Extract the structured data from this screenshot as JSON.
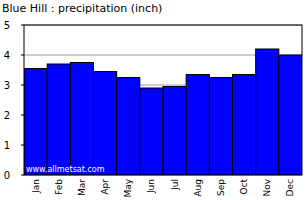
{
  "chart_data": {
    "type": "bar",
    "title": "Blue Hill : precipitation (inch)",
    "categories": [
      "Jan",
      "Feb",
      "Mar",
      "Apr",
      "May",
      "Jun",
      "Jul",
      "Aug",
      "Sep",
      "Oct",
      "Nov",
      "Dec"
    ],
    "values": [
      3.55,
      3.7,
      3.75,
      3.45,
      3.25,
      2.9,
      2.95,
      3.35,
      3.25,
      3.35,
      4.2,
      4.0
    ],
    "color": "#0000ff",
    "ylim": [
      0,
      5
    ],
    "yticks": [
      0,
      1,
      2,
      3,
      4,
      5
    ],
    "grid": true,
    "annotation": "www.allmetsat.com"
  }
}
